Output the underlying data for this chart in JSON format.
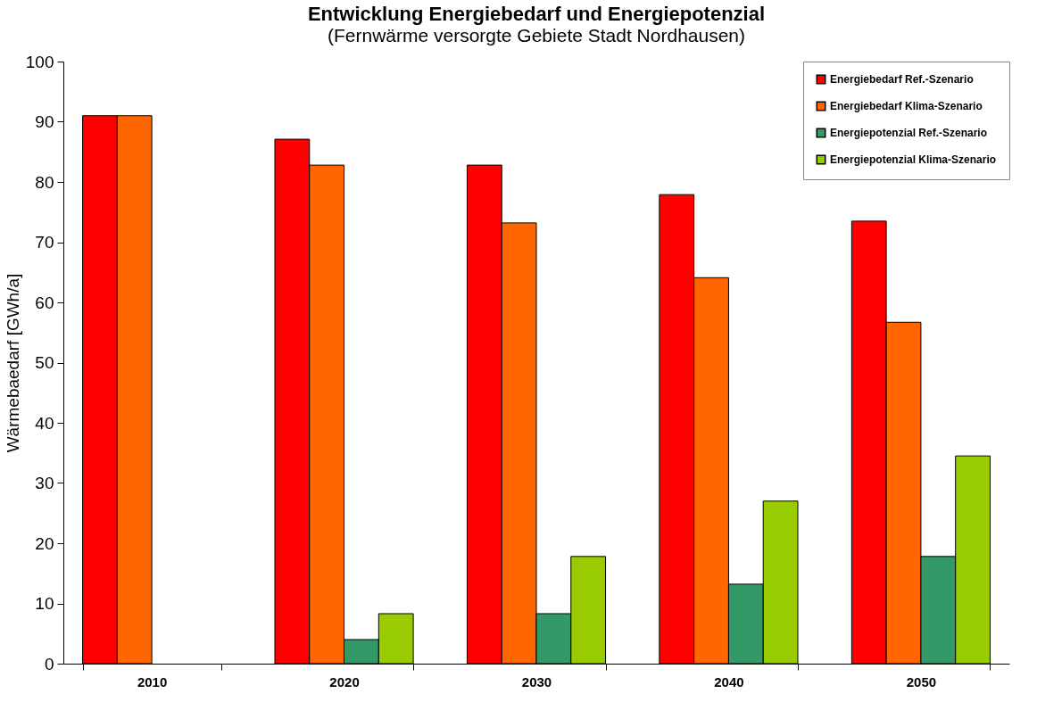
{
  "chart_data": {
    "type": "bar",
    "title": "Entwicklung Energiebedarf und Energiepotenzial",
    "subtitle": "(Fernwärme versorgte Gebiete Stadt Nordhausen)",
    "ylabel": "Wärmebaedarf [GWh/a]",
    "categories": [
      "2010",
      "2020",
      "2030",
      "2040",
      "2050"
    ],
    "ylim": [
      0,
      100
    ],
    "yticks": [
      0,
      10,
      20,
      30,
      40,
      50,
      60,
      70,
      80,
      90,
      100
    ],
    "grid": false,
    "legend": "top right",
    "series": [
      {
        "name": "Energiebedarf Ref.-Szenario",
        "color": "#ff0000",
        "values": [
          91,
          87.1,
          82.8,
          77.9,
          73.5
        ]
      },
      {
        "name": "Energiebedarf Klima-Szenario",
        "color": "#ff6600",
        "values": [
          91,
          82.8,
          73.2,
          64.1,
          56.7
        ]
      },
      {
        "name": "Energiepotenzial Ref.-Szenario",
        "color": "#339966",
        "values": [
          null,
          4,
          8.3,
          13.2,
          17.8
        ]
      },
      {
        "name": "Energiepotenzial Klima-Szenario",
        "color": "#99cc00",
        "values": [
          null,
          8.3,
          17.8,
          27,
          34.5
        ]
      }
    ]
  }
}
